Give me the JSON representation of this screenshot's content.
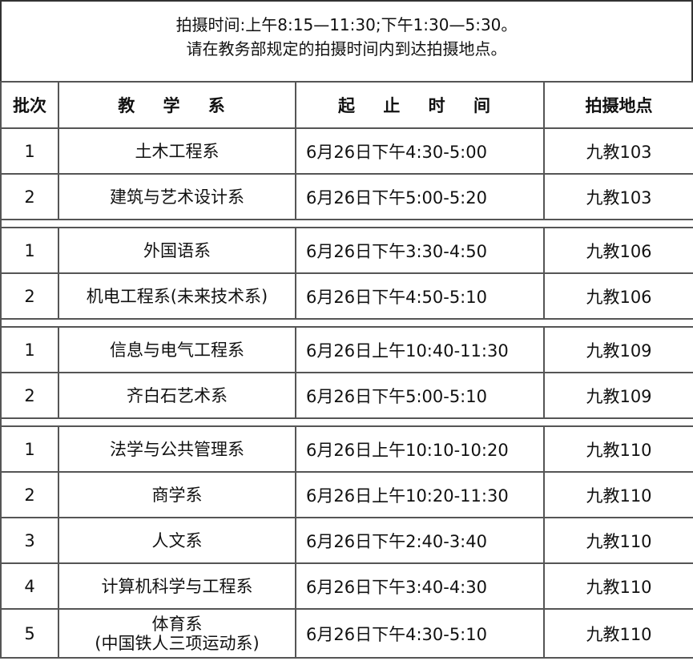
{
  "notice": {
    "line1": "拍摄时间:上午8:15—11:30;下午1:30—5:30。",
    "line2": "请在教务部规定的拍摄时间内到达拍摄地点。"
  },
  "headers": [
    "批次",
    "教 学 系",
    "起 止 时 间",
    "拍摄地点"
  ],
  "groups": [
    [
      {
        "batch": "1",
        "dept": "土木工程系",
        "time": "6月26日下午4:30-5:00",
        "place": "九教103"
      },
      {
        "batch": "2",
        "dept": "建筑与艺术设计系",
        "time": "6月26日下午5:00-5:20",
        "place": "九教103"
      }
    ],
    [
      {
        "batch": "1",
        "dept": "外国语系",
        "time": "6月26日下午3:30-4:50",
        "place": "九教106"
      },
      {
        "batch": "2",
        "dept": "机电工程系(未来技术系)",
        "time": "6月26日下午4:50-5:10",
        "place": "九教106"
      }
    ],
    [
      {
        "batch": "1",
        "dept": "信息与电气工程系",
        "time": "6月26日上午10:40-11:30",
        "place": "九教109"
      },
      {
        "batch": "2",
        "dept": "齐白石艺术系",
        "time": "6月26日下午5:00-5:10",
        "place": "九教109"
      }
    ],
    [
      {
        "batch": "1",
        "dept": "法学与公共管理系",
        "time": "6月26日上午10:10-10:20",
        "place": "九教110"
      },
      {
        "batch": "2",
        "dept": "商学系",
        "time": "6月26日上午10:20-11:30",
        "place": "九教110"
      },
      {
        "batch": "3",
        "dept": "人文系",
        "time": "6月26日下午2:40-3:40",
        "place": "九教110"
      },
      {
        "batch": "4",
        "dept": "计算机科学与工程系",
        "time": "6月26日下午3:40-4:30",
        "place": "九教110"
      },
      {
        "batch": "5",
        "dept": "体育系\n(中国铁人三项运动系)",
        "time": "6月26日下午4:30-5:10",
        "place": "九教110"
      }
    ]
  ]
}
